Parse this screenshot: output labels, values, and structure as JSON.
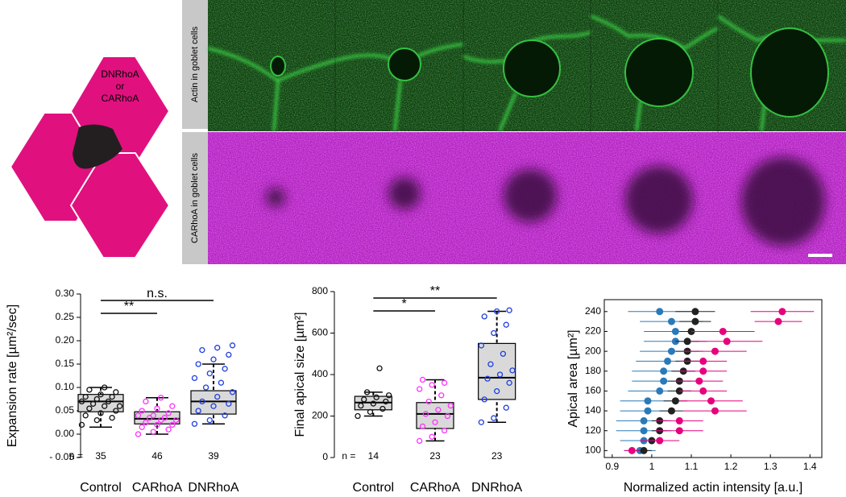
{
  "figure": {
    "diagram": {
      "labels": [
        "DNRhoA",
        "or",
        "CARhoA"
      ]
    },
    "microscopy": {
      "row_labels": [
        "Actin in goblet cells",
        "CARhoA in goblet cells"
      ]
    }
  },
  "chart_data": [
    {
      "type": "box",
      "ylabel": "Expansion rate [µm²/sec]",
      "categories": [
        "Control",
        "CARhoA",
        "DNRhoA"
      ],
      "colors": [
        "#111111",
        "#ff33ff",
        "#1f3fe0"
      ],
      "n_label": "n =",
      "n": [
        35,
        46,
        39
      ],
      "boxes": [
        {
          "min": 0.015,
          "q1": 0.048,
          "median": 0.07,
          "q3": 0.085,
          "max": 0.1
        },
        {
          "min": 0.0,
          "q1": 0.022,
          "median": 0.033,
          "q3": 0.048,
          "max": 0.078
        },
        {
          "min": 0.022,
          "q1": 0.043,
          "median": 0.07,
          "q3": 0.093,
          "max": 0.15
        }
      ],
      "points": [
        [
          0.02,
          0.03,
          0.035,
          0.04,
          0.045,
          0.05,
          0.055,
          0.06,
          0.06,
          0.065,
          0.07,
          0.07,
          0.075,
          0.08,
          0.08,
          0.085,
          0.09,
          0.095,
          0.1
        ],
        [
          0.0,
          0.005,
          0.01,
          0.015,
          0.02,
          0.02,
          0.025,
          0.03,
          0.03,
          0.035,
          0.035,
          0.04,
          0.04,
          0.045,
          0.05,
          0.055,
          0.06,
          0.07,
          0.078
        ],
        [
          0.022,
          0.03,
          0.04,
          0.05,
          0.06,
          0.065,
          0.07,
          0.08,
          0.09,
          0.1,
          0.11,
          0.12,
          0.13,
          0.14,
          0.15,
          0.16,
          0.17,
          0.18,
          0.185,
          0.19
        ]
      ],
      "significance": [
        {
          "label": "**",
          "between": [
            "Control",
            "CARhoA"
          ]
        },
        {
          "label": "n.s.",
          "between": [
            "Control",
            "DNRhoA"
          ]
        }
      ],
      "ylim": [
        -0.05,
        0.3
      ],
      "yticks": [
        {
          "value": -0.05,
          "label": "- 0.05"
        },
        {
          "value": 0,
          "label": "0.00"
        },
        {
          "value": 0.05,
          "label": "0.05"
        },
        {
          "value": 0.1,
          "label": "0.10"
        },
        {
          "value": 0.15,
          "label": "0.15"
        },
        {
          "value": 0.2,
          "label": "0.20"
        },
        {
          "value": 0.25,
          "label": "0.25"
        },
        {
          "value": 0.3,
          "label": "0.30"
        }
      ]
    },
    {
      "type": "box",
      "ylabel": "Final apical size [µm²]",
      "categories": [
        "Control",
        "CARhoA",
        "DNRhoA"
      ],
      "colors": [
        "#111111",
        "#ff33ff",
        "#1f3fe0"
      ],
      "n_label": "n =",
      "n": [
        14,
        23,
        23
      ],
      "boxes": [
        {
          "min": 200,
          "q1": 230,
          "median": 265,
          "q3": 295,
          "max": 315
        },
        {
          "min": 80,
          "q1": 140,
          "median": 210,
          "q3": 265,
          "max": 375
        },
        {
          "min": 170,
          "q1": 280,
          "median": 385,
          "q3": 550,
          "max": 705
        }
      ],
      "points": [
        [
          200,
          220,
          235,
          250,
          260,
          270,
          280,
          290,
          300,
          315,
          430
        ],
        [
          80,
          100,
          130,
          150,
          170,
          200,
          210,
          230,
          250,
          270,
          300,
          330,
          350,
          360,
          375
        ],
        [
          170,
          190,
          240,
          280,
          320,
          360,
          380,
          400,
          420,
          450,
          500,
          540,
          600,
          640,
          680,
          705,
          710
        ]
      ],
      "significance": [
        {
          "label": "*",
          "between": [
            "Control",
            "CARhoA"
          ]
        },
        {
          "label": "**",
          "between": [
            "Control",
            "DNRhoA"
          ]
        }
      ],
      "ylim": [
        0,
        800
      ],
      "yticks": [
        0,
        200,
        400,
        600,
        800
      ]
    },
    {
      "type": "errorbar",
      "ylabel": "Apical area [µm²]",
      "xlabel": "Normalized actin intensity [a.u.]",
      "y": [
        100,
        110,
        120,
        130,
        140,
        150,
        160,
        170,
        180,
        190,
        200,
        210,
        220,
        230,
        240
      ],
      "series": [
        {
          "color": "#2a7ab8",
          "values": [
            0.97,
            0.98,
            0.98,
            0.98,
            0.99,
            0.99,
            1.02,
            1.03,
            1.03,
            1.04,
            1.05,
            1.06,
            1.06,
            1.05,
            1.02
          ],
          "errors": [
            0.04,
            0.06,
            0.07,
            0.07,
            0.07,
            0.07,
            0.08,
            0.08,
            0.08,
            0.08,
            0.08,
            0.08,
            0.08,
            0.08,
            0.08
          ]
        },
        {
          "color": "#222222",
          "values": [
            0.98,
            1.0,
            1.02,
            1.02,
            1.05,
            1.06,
            1.07,
            1.07,
            1.08,
            1.09,
            1.09,
            1.09,
            1.1,
            1.11,
            1.11
          ],
          "errors": [
            0.02,
            0.02,
            0.02,
            0.02,
            0.03,
            0.03,
            0.03,
            0.03,
            0.03,
            0.03,
            0.03,
            0.03,
            0.03,
            0.04,
            0.05
          ]
        },
        {
          "color": "#e6007e",
          "values": [
            0.95,
            1.02,
            1.07,
            1.07,
            1.16,
            1.15,
            1.13,
            1.12,
            1.13,
            1.13,
            1.16,
            1.19,
            1.18,
            1.32,
            1.33
          ],
          "errors": [
            0.02,
            0.05,
            0.06,
            0.06,
            0.08,
            0.08,
            0.06,
            0.06,
            0.06,
            0.06,
            0.08,
            0.09,
            0.08,
            0.06,
            0.08
          ]
        }
      ],
      "xlim": [
        0.88,
        1.43
      ],
      "xticks": [
        0.9,
        1,
        1.1,
        1.2,
        1.3,
        1.4
      ],
      "ylim": [
        93,
        252
      ],
      "yticks": [
        100,
        120,
        140,
        160,
        180,
        200,
        220,
        240
      ]
    }
  ]
}
